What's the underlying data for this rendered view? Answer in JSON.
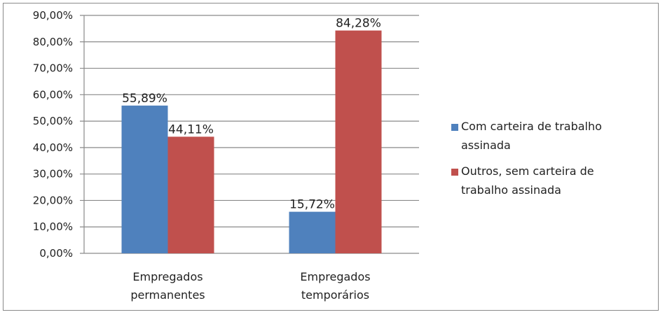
{
  "chart_data": {
    "type": "bar",
    "categories": [
      "Empregados permanentes",
      "Empregados temporários"
    ],
    "category_lines": [
      [
        "Empregados",
        "permanentes"
      ],
      [
        "Empregados",
        "temporários"
      ]
    ],
    "series": [
      {
        "name": "Com carteira de trabalho assinada",
        "name_lines": [
          "Com carteira de trabalho",
          "assinada"
        ],
        "values": [
          55.89,
          15.72
        ],
        "labels": [
          "55,89%",
          "15,72%"
        ],
        "color": "#4f81bd"
      },
      {
        "name": "Outros, sem carteira de trabalho assinada",
        "name_lines": [
          "Outros, sem carteira de",
          "trabalho assinada"
        ],
        "values": [
          44.11,
          84.28
        ],
        "labels": [
          "44,11%",
          "84,28%"
        ],
        "color": "#c0504d"
      }
    ],
    "ylim": [
      0,
      90
    ],
    "yticks": [
      "0,00%",
      "10,00%",
      "20,00%",
      "30,00%",
      "40,00%",
      "50,00%",
      "60,00%",
      "70,00%",
      "80,00%",
      "90,00%"
    ],
    "grid": true,
    "legend": "right",
    "gridline_color": "#8a8a8a",
    "axis_color": "#8a8a8a"
  }
}
